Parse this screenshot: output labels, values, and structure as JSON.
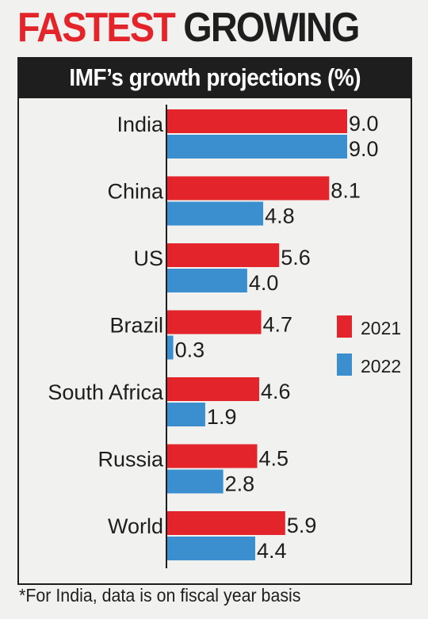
{
  "headline": {
    "part1": "FASTEST",
    "part2": "GROWING"
  },
  "subtitle": "IMF’s growth projections (%)",
  "footnote": "*For India, data is on fiscal year basis",
  "colors": {
    "series_2021": "#e3242b",
    "series_2022": "#3c8fcf",
    "headline_red": "#e3242b",
    "dark": "#1e1e1e"
  },
  "chart_data": {
    "type": "bar",
    "orientation": "horizontal",
    "categories": [
      "India",
      "China",
      "US",
      "Brazil",
      "South Africa",
      "Russia",
      "World"
    ],
    "series": [
      {
        "name": "2021",
        "values": [
          9.0,
          8.1,
          5.6,
          4.7,
          4.6,
          4.5,
          5.9
        ],
        "labels": [
          "9.0",
          "8.1",
          "5.6",
          "4.7",
          "4.6",
          "4.5",
          "5.9"
        ]
      },
      {
        "name": "2022",
        "values": [
          9.0,
          4.8,
          4.0,
          0.3,
          1.9,
          2.8,
          4.4
        ],
        "labels": [
          "9.0",
          "4.8",
          "4.0",
          "0.3",
          "1.9",
          "2.8",
          "4.4"
        ]
      }
    ],
    "xlim": [
      0,
      9.0
    ],
    "grid": false,
    "legend_position": "right"
  }
}
